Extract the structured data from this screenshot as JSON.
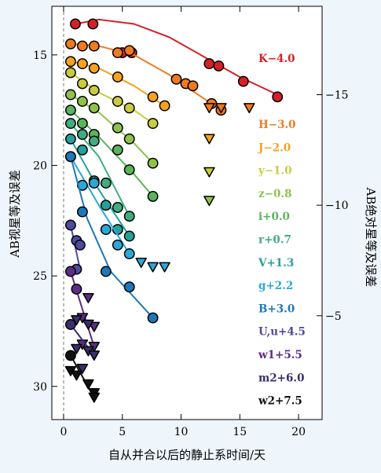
{
  "chart_data": {
    "type": "scatter",
    "title": "",
    "xlabel": "自从并合以后的静止系时间/天",
    "ylabel": "AB视星等及误差",
    "y2label": "AB绝对星等及误差",
    "xlim": [
      -1,
      22
    ],
    "ylim": [
      31.5,
      12.8
    ],
    "y_inverted": true,
    "xticks": [
      0,
      5,
      10,
      15,
      20
    ],
    "yticks": [
      15,
      20,
      25,
      30
    ],
    "y2ticks": [
      -15,
      -10,
      -5
    ],
    "y2_offset": -31.8,
    "merger_marker_x": 0,
    "grid": false,
    "legend_placement": "right",
    "series": [
      {
        "name": "K−4.0",
        "color": "#d42027",
        "points": [
          [
            1.0,
            13.6
          ],
          [
            2.5,
            13.6
          ],
          [
            5.0,
            14.9
          ],
          [
            5.8,
            14.9
          ],
          [
            12.4,
            15.4
          ],
          [
            13.2,
            15.5
          ],
          [
            15.3,
            16.2
          ],
          [
            18.2,
            16.9
          ]
        ],
        "upper_limits": [],
        "curve": [
          [
            1.0,
            13.6
          ],
          [
            3,
            13.4
          ],
          [
            6,
            13.6
          ],
          [
            9,
            14.2
          ],
          [
            12,
            15.1
          ],
          [
            15,
            16.0
          ],
          [
            18.2,
            16.8
          ]
        ]
      },
      {
        "name": "H−3.0",
        "color": "#f07a22",
        "points": [
          [
            0.6,
            14.5
          ],
          [
            1.6,
            14.6
          ],
          [
            2.6,
            14.6
          ],
          [
            4.6,
            14.9
          ],
          [
            5.6,
            14.8
          ],
          [
            9.6,
            16.1
          ],
          [
            10.4,
            16.3
          ],
          [
            11.0,
            16.4
          ],
          [
            12.6,
            17.2
          ],
          [
            13.4,
            17.5
          ]
        ],
        "upper_limits": [
          [
            12.4,
            17.4
          ],
          [
            13.4,
            17.4
          ],
          [
            15.8,
            17.4
          ]
        ],
        "curve": [
          [
            0.6,
            14.5
          ],
          [
            3,
            14.6
          ],
          [
            6,
            15.0
          ],
          [
            9,
            15.9
          ],
          [
            12,
            17.0
          ],
          [
            13.4,
            17.5
          ]
        ]
      },
      {
        "name": "J−2.0",
        "color": "#f6a21d",
        "points": [
          [
            0.6,
            15.3
          ],
          [
            1.6,
            15.4
          ],
          [
            2.6,
            15.6
          ],
          [
            4.6,
            16.0
          ],
          [
            7.6,
            16.9
          ],
          [
            8.6,
            17.3
          ]
        ],
        "upper_limits": [
          [
            12.4,
            18.8
          ]
        ],
        "curve": [
          [
            0.6,
            15.3
          ],
          [
            3,
            15.6
          ],
          [
            6,
            16.4
          ],
          [
            8.6,
            17.3
          ]
        ]
      },
      {
        "name": "y−1.0",
        "color": "#c9cc3d",
        "points": [
          [
            0.6,
            15.8
          ],
          [
            1.6,
            16.3
          ],
          [
            2.6,
            16.6
          ],
          [
            4.6,
            17.1
          ],
          [
            5.6,
            17.4
          ],
          [
            7.6,
            18.1
          ]
        ],
        "upper_limits": [
          [
            12.4,
            20.3
          ]
        ],
        "curve": [
          [
            0.6,
            15.8
          ],
          [
            3,
            16.7
          ],
          [
            6,
            17.5
          ],
          [
            7.6,
            18.1
          ]
        ]
      },
      {
        "name": "z−0.8",
        "color": "#8fc24a",
        "points": [
          [
            0.6,
            16.8
          ],
          [
            1.6,
            17.1
          ],
          [
            2.6,
            17.4
          ],
          [
            4.6,
            18.3
          ],
          [
            5.6,
            18.8
          ],
          [
            7.6,
            19.9
          ]
        ],
        "upper_limits": [
          [
            12.4,
            21.6
          ]
        ],
        "curve": [
          [
            0.6,
            16.8
          ],
          [
            3,
            17.6
          ],
          [
            6,
            19.0
          ],
          [
            7.6,
            19.9
          ]
        ]
      },
      {
        "name": "i+0.0",
        "color": "#5bb35c",
        "points": [
          [
            0.6,
            17.5
          ],
          [
            1.6,
            18.1
          ],
          [
            2.6,
            18.6
          ],
          [
            4.6,
            19.3
          ],
          [
            5.6,
            20.2
          ],
          [
            7.6,
            21.4
          ]
        ],
        "upper_limits": [],
        "curve": [
          [
            0.6,
            17.5
          ],
          [
            3,
            18.7
          ],
          [
            6,
            20.4
          ],
          [
            7.6,
            21.4
          ]
        ]
      },
      {
        "name": "r+0.7",
        "color": "#3fae7e",
        "points": [
          [
            0.6,
            18.1
          ],
          [
            1.6,
            18.6
          ],
          [
            2.6,
            18.9
          ],
          [
            3.6,
            20.8
          ],
          [
            4.6,
            21.9
          ],
          [
            5.6,
            22.3
          ]
        ],
        "upper_limits": [],
        "curve": [
          [
            0.6,
            18.1
          ],
          [
            3,
            19.6
          ],
          [
            5.6,
            22.3
          ]
        ]
      },
      {
        "name": "V+1.3",
        "color": "#23a19a",
        "points": [
          [
            0.6,
            18.8
          ],
          [
            1.6,
            19.3
          ],
          [
            2.6,
            20.7
          ],
          [
            3.6,
            21.8
          ],
          [
            4.6,
            22.9
          ],
          [
            5.6,
            23.2
          ]
        ],
        "upper_limits": [],
        "curve": [
          [
            0.6,
            18.8
          ],
          [
            3,
            21.1
          ],
          [
            5.6,
            23.2
          ]
        ]
      },
      {
        "name": "g+2.2",
        "color": "#2ba8d8",
        "points": [
          [
            0.6,
            19.6
          ],
          [
            1.6,
            20.9
          ],
          [
            2.6,
            20.8
          ],
          [
            3.6,
            22.9
          ],
          [
            4.6,
            23.6
          ],
          [
            5.6,
            24.0
          ]
        ],
        "upper_limits": [
          [
            6.6,
            24.4
          ],
          [
            7.6,
            24.6
          ],
          [
            8.6,
            24.6
          ]
        ],
        "curve": [
          [
            0.6,
            19.6
          ],
          [
            3,
            21.8
          ],
          [
            5.6,
            24.0
          ]
        ]
      },
      {
        "name": "B+3.0",
        "color": "#1d77b8",
        "points": [
          [
            0.6,
            19.6
          ],
          [
            1.6,
            22.1
          ],
          [
            3.6,
            24.8
          ],
          [
            5.6,
            25.5
          ],
          [
            7.6,
            26.9
          ]
        ],
        "upper_limits": [],
        "curve": [
          [
            0.6,
            19.6
          ],
          [
            2,
            22.4
          ],
          [
            4,
            24.8
          ],
          [
            7.6,
            26.9
          ]
        ]
      },
      {
        "name": "U,u+4.5",
        "color": "#4d4aa0",
        "points": [
          [
            0.6,
            22.7
          ],
          [
            1.1,
            23.4
          ],
          [
            1.4,
            23.6
          ],
          [
            1.1,
            24.7
          ]
        ],
        "upper_limits": [],
        "curve": [
          [
            0.6,
            22.7
          ],
          [
            1.4,
            24.7
          ]
        ]
      },
      {
        "name": "w1+5.5",
        "color": "#5e2d86",
        "points": [
          [
            0.6,
            24.8
          ],
          [
            1.1,
            25.6
          ]
        ],
        "upper_limits": [
          [
            2.1,
            26.0
          ],
          [
            1.6,
            26.9
          ],
          [
            2.6,
            27.3
          ],
          [
            1.6,
            28.1
          ],
          [
            2.6,
            28.2
          ]
        ],
        "curve": [
          [
            0.6,
            24.8
          ],
          [
            2.6,
            28.2
          ]
        ]
      },
      {
        "name": "m2+6.0",
        "color": "#3b2d6b",
        "points": [
          [
            0.6,
            27.2
          ]
        ],
        "upper_limits": [
          [
            1.1,
            27.0
          ],
          [
            2.1,
            27.2
          ],
          [
            1.1,
            28.3
          ],
          [
            2.1,
            28.4
          ],
          [
            2.6,
            28.6
          ],
          [
            1.6,
            29.2
          ]
        ],
        "curve": [
          [
            0.6,
            27.2
          ],
          [
            2.6,
            28.6
          ]
        ]
      },
      {
        "name": "w2+7.5",
        "color": "#111111",
        "points": [
          [
            0.6,
            28.6
          ]
        ],
        "upper_limits": [
          [
            0.6,
            29.3
          ],
          [
            1.1,
            29.5
          ],
          [
            2.1,
            29.9
          ],
          [
            2.6,
            30.3
          ],
          [
            2.6,
            30.5
          ]
        ],
        "curve": [
          [
            0.6,
            28.6
          ],
          [
            2.6,
            30.5
          ]
        ]
      }
    ]
  }
}
